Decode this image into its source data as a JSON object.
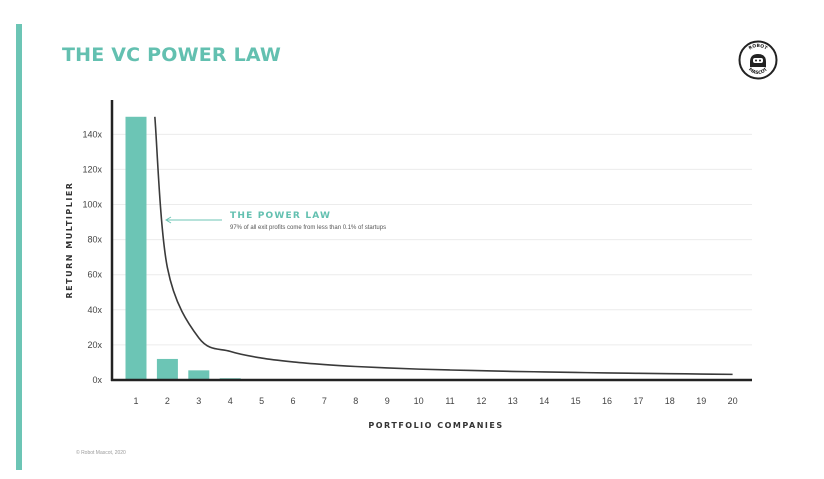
{
  "slide": {
    "title": "THE VC POWER LAW",
    "copyright": "© Robot Mascot, 2020",
    "logo_text_top": "ROBOT",
    "logo_text_bottom": "MASCOT"
  },
  "colors": {
    "accent": "#6cc5b5",
    "bar": "#6cc5b5",
    "curve": "#3a3a3a",
    "gridline": "#ececec"
  },
  "chart_data": {
    "type": "bar",
    "title": "",
    "xlabel": "PORTFOLIO COMPANIES",
    "ylabel": "RETURN MULTIPLIER",
    "categories": [
      "1",
      "2",
      "3",
      "4",
      "5",
      "6",
      "7",
      "8",
      "9",
      "10",
      "11",
      "12",
      "13",
      "14",
      "15",
      "16",
      "17",
      "18",
      "19",
      "20"
    ],
    "values": [
      150,
      12,
      5.5,
      1,
      0,
      0,
      0,
      0,
      0,
      0,
      0,
      0,
      0,
      0,
      0,
      0,
      0,
      0,
      0,
      0
    ],
    "y_ticks": [
      "0x",
      "20x",
      "40x",
      "60x",
      "80x",
      "100x",
      "120x",
      "140x"
    ],
    "y_tick_values": [
      0,
      20,
      40,
      60,
      80,
      100,
      120,
      140
    ],
    "ylim": [
      0,
      155
    ],
    "grid": true,
    "curve": {
      "type": "line",
      "description_value": "power-law curve",
      "x": [
        1.6,
        2,
        3,
        4,
        5,
        6,
        7,
        8,
        9,
        10,
        11,
        12,
        13,
        14,
        15,
        16,
        17,
        18,
        19,
        20
      ],
      "y": [
        150,
        64,
        24,
        16.3,
        12.5,
        10.3,
        8.8,
        7.7,
        6.9,
        6.2,
        5.7,
        5.3,
        4.9,
        4.6,
        4.3,
        4.0,
        3.8,
        3.6,
        3.4,
        3.2
      ]
    },
    "annotation": {
      "title": "THE POWER LAW",
      "text": "97% of all exit profits come from less than 0.1% of startups"
    }
  }
}
